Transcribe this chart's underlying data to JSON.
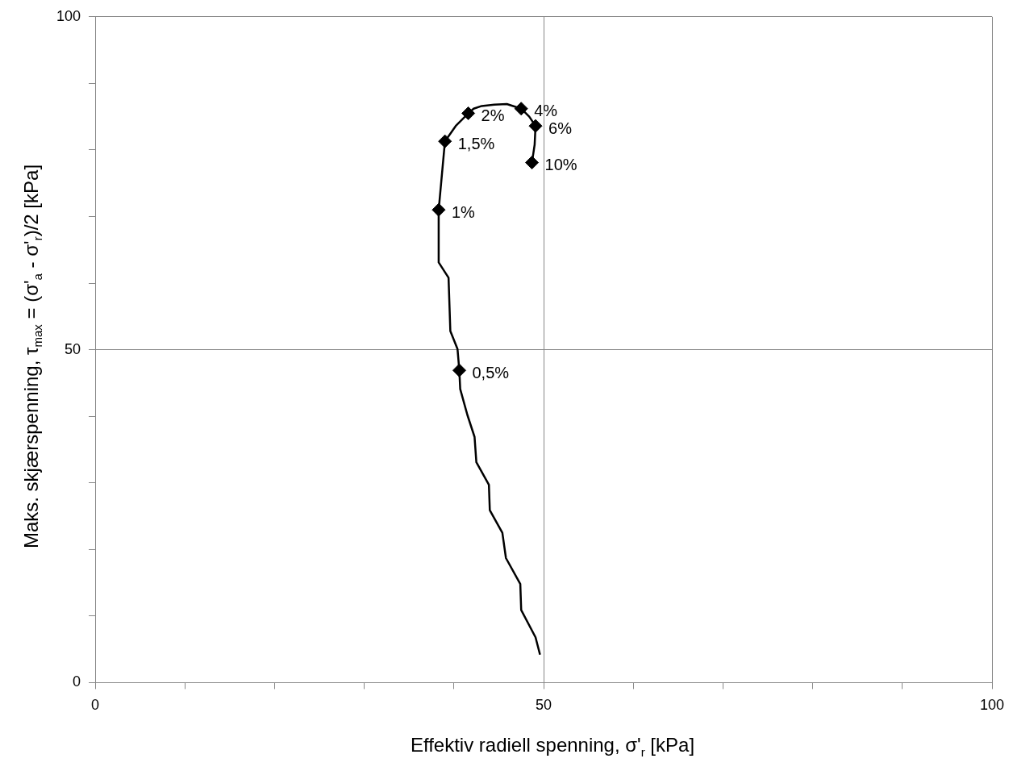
{
  "chart_data": {
    "type": "line",
    "xlabel": "Effektiv radiell spenning,  σ'$_{r}$ [kPa]",
    "ylabel": "Maks. skjærspenning, τ$_{max}$ = (σ'$_{a}$ - σ'$_{r}$)/2  [kPa]",
    "xlim": [
      0,
      100
    ],
    "ylim": [
      0,
      100
    ],
    "xticks": [
      0,
      {
        "value": 10,
        "label": null
      },
      {
        "value": 20,
        "label": null
      },
      {
        "value": 30,
        "label": null
      },
      {
        "value": 40,
        "label": null
      },
      50,
      {
        "value": 60,
        "label": null
      },
      {
        "value": 70,
        "label": null
      },
      {
        "value": 80,
        "label": null
      },
      {
        "value": 90,
        "label": null
      },
      100
    ],
    "yticks": [
      0,
      {
        "value": 10,
        "label": null
      },
      {
        "value": 20,
        "label": null
      },
      {
        "value": 30,
        "label": null
      },
      {
        "value": 40,
        "label": null
      },
      50,
      {
        "value": 60,
        "label": null
      },
      {
        "value": 70,
        "label": null
      },
      {
        "value": 80,
        "label": null
      },
      {
        "value": 90,
        "label": null
      },
      100
    ],
    "grid": true,
    "legend": false,
    "series": [
      {
        "color": "#000000",
        "marker": "none",
        "x": [
          49.6,
          49.1,
          47.5,
          47.4,
          45.8,
          45.4,
          44.0,
          43.9,
          42.5,
          42.3,
          41.5,
          40.7,
          40.6,
          40.4,
          39.6,
          39.4,
          38.3,
          38.3,
          39.0,
          40.2,
          41.6,
          42.2,
          43.1,
          44.5,
          45.9,
          47.5,
          48.4,
          49.1,
          49.0,
          48.7
        ],
        "values": [
          4.2,
          6.8,
          10.9,
          14.8,
          18.7,
          22.5,
          25.9,
          29.7,
          33.1,
          36.9,
          40.2,
          44.1,
          46.9,
          50.1,
          52.8,
          60.8,
          63.1,
          71.0,
          81.3,
          83.6,
          85.5,
          86.2,
          86.6,
          86.8,
          86.9,
          86.2,
          85.0,
          83.6,
          80.8,
          78.1
        ]
      },
      {
        "type": "scatter",
        "color": "#000000",
        "marker": "diamond",
        "x": [
          40.6,
          38.3,
          39.0,
          41.6,
          47.5,
          49.1,
          48.7
        ],
        "values": [
          46.9,
          71.0,
          81.3,
          85.5,
          86.2,
          83.6,
          78.1
        ]
      }
    ],
    "annotations": [
      {
        "text": "0,5%",
        "x": 40.6,
        "y": 46.9
      },
      {
        "text": "1%",
        "x": 38.3,
        "y": 71.0
      },
      {
        "text": "1,5%",
        "x": 39.0,
        "y": 81.3
      },
      {
        "text": "2%",
        "x": 41.6,
        "y": 85.5
      },
      {
        "text": "4%",
        "x": 47.5,
        "y": 86.2
      },
      {
        "text": "6%",
        "x": 49.1,
        "y": 83.6
      },
      {
        "text": "10%",
        "x": 48.7,
        "y": 78.1
      }
    ]
  }
}
